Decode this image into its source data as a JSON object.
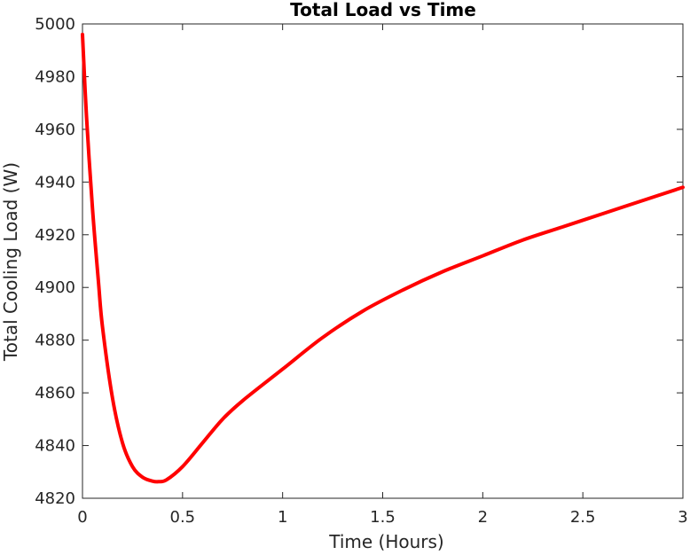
{
  "chart_data": {
    "type": "line",
    "title": "Total Load vs Time",
    "xlabel": "Time (Hours)",
    "ylabel": "Total Cooling Load (W)",
    "xlim": [
      0,
      3
    ],
    "ylim": [
      4820,
      5000
    ],
    "xticks": [
      0,
      0.5,
      1,
      1.5,
      2,
      2.5,
      3
    ],
    "xtick_labels": [
      "0",
      "0.5",
      "1",
      "1.5",
      "2",
      "2.5",
      "3"
    ],
    "yticks": [
      4820,
      4840,
      4860,
      4880,
      4900,
      4920,
      4940,
      4960,
      4980,
      5000
    ],
    "ytick_labels": [
      "4820",
      "4840",
      "4860",
      "4880",
      "4900",
      "4920",
      "4940",
      "4960",
      "4980",
      "5000"
    ],
    "grid": false,
    "line_color": "#ff0000",
    "axes_color": "#262626",
    "series": [
      {
        "x": [
          0,
          0.02,
          0.05,
          0.08,
          0.1,
          0.15,
          0.2,
          0.25,
          0.3,
          0.35,
          0.38,
          0.42,
          0.5,
          0.6,
          0.7,
          0.8,
          1.0,
          1.2,
          1.4,
          1.6,
          1.8,
          2.0,
          2.2,
          2.4,
          2.6,
          2.8,
          3.0
        ],
        "values": [
          4996,
          4965,
          4930,
          4902,
          4885,
          4858,
          4841,
          4832,
          4828,
          4826.5,
          4826.3,
          4827,
          4832,
          4841,
          4850,
          4857,
          4869,
          4881,
          4891,
          4899,
          4906,
          4912,
          4918,
          4923,
          4928,
          4933,
          4938
        ]
      }
    ]
  }
}
